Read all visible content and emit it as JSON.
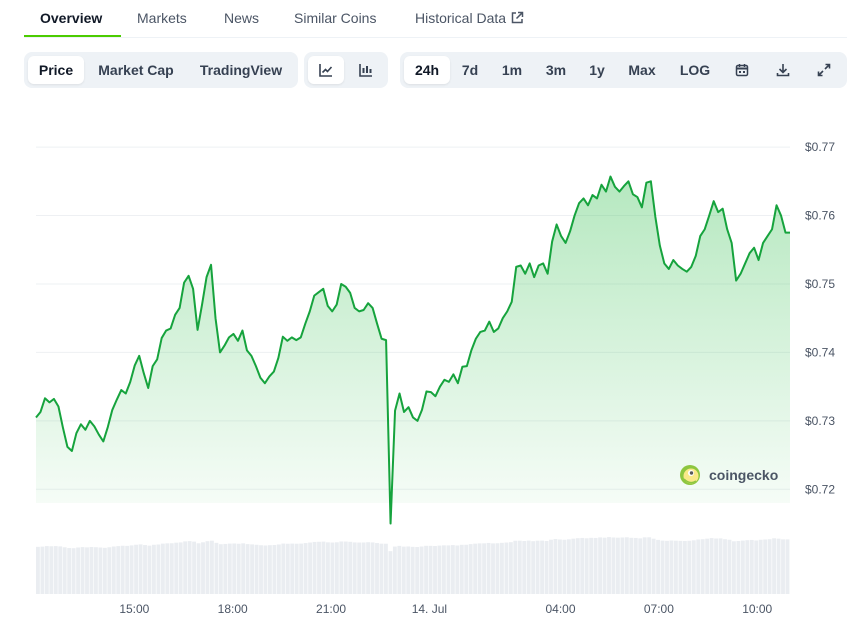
{
  "tabs": [
    {
      "label": "Overview",
      "active": true
    },
    {
      "label": "Markets"
    },
    {
      "label": "News"
    },
    {
      "label": "Similar Coins"
    },
    {
      "label": "Historical Data",
      "external": true
    }
  ],
  "chart_modes": [
    {
      "label": "Price",
      "selected": true
    },
    {
      "label": "Market Cap"
    },
    {
      "label": "TradingView"
    }
  ],
  "chart_styles": [
    {
      "icon": "line-chart-icon",
      "selected": true
    },
    {
      "icon": "candlestick-chart-icon"
    }
  ],
  "ranges": [
    {
      "label": "24h",
      "selected": true
    },
    {
      "label": "7d"
    },
    {
      "label": "1m"
    },
    {
      "label": "3m"
    },
    {
      "label": "1y"
    },
    {
      "label": "Max"
    },
    {
      "label": "LOG"
    }
  ],
  "tools": [
    "calendar-icon",
    "download-icon",
    "fullscreen-icon"
  ],
  "watermark": "coingecko",
  "colors": {
    "line": "#16a33d",
    "area_top": "#c9efd2",
    "volume": "#eaedf1",
    "accent": "#4bcc00"
  },
  "chart_data": {
    "type": "area",
    "ylim": [
      0.718,
      0.7725
    ],
    "yticks": [
      "$0.77",
      "$0.76",
      "$0.75",
      "$0.74",
      "$0.73",
      "$0.72"
    ],
    "ytick_values": [
      0.77,
      0.76,
      0.75,
      0.74,
      0.73,
      0.72
    ],
    "xticks": [
      "15:00",
      "18:00",
      "21:00",
      "14. Jul",
      "04:00",
      "07:00",
      "10:00"
    ],
    "xtick_hours": [
      3,
      6,
      9,
      12,
      16,
      19,
      22
    ],
    "x_start_label": "12:00",
    "x_end_hours": 23.0,
    "grid": true,
    "series": [
      {
        "values": [
          0.7305,
          0.7313,
          0.7333,
          0.7327,
          0.7332,
          0.7321,
          0.729,
          0.7262,
          0.7256,
          0.7282,
          0.7295,
          0.7287,
          0.73,
          0.7292,
          0.728,
          0.727,
          0.7291,
          0.7316,
          0.7331,
          0.7345,
          0.734,
          0.7357,
          0.7381,
          0.7395,
          0.737,
          0.7348,
          0.738,
          0.739,
          0.7421,
          0.7432,
          0.7435,
          0.7455,
          0.7465,
          0.7502,
          0.7512,
          0.7493,
          0.7433,
          0.747,
          0.751,
          0.7528,
          0.745,
          0.74,
          0.741,
          0.7422,
          0.7427,
          0.7417,
          0.7432,
          0.7403,
          0.7395,
          0.738,
          0.7363,
          0.7355,
          0.7365,
          0.7372,
          0.7392,
          0.7423,
          0.7417,
          0.7422,
          0.7418,
          0.7422,
          0.7442,
          0.746,
          0.7483,
          0.7488,
          0.7493,
          0.7468,
          0.746,
          0.747,
          0.75,
          0.7496,
          0.7487,
          0.7465,
          0.746,
          0.7462,
          0.7472,
          0.7465,
          0.7442,
          0.742,
          0.7418,
          0.715,
          0.7315,
          0.734,
          0.7313,
          0.732,
          0.7305,
          0.73,
          0.7316,
          0.7343,
          0.7342,
          0.7336,
          0.735,
          0.736,
          0.7357,
          0.7368,
          0.7355,
          0.7379,
          0.738,
          0.7403,
          0.742,
          0.743,
          0.7432,
          0.7445,
          0.743,
          0.7435,
          0.745,
          0.746,
          0.7474,
          0.7525,
          0.7527,
          0.7515,
          0.753,
          0.751,
          0.7527,
          0.753,
          0.7515,
          0.7562,
          0.7587,
          0.757,
          0.756,
          0.7577,
          0.76,
          0.7618,
          0.7625,
          0.7615,
          0.763,
          0.7625,
          0.7645,
          0.7635,
          0.7657,
          0.7642,
          0.7635,
          0.7643,
          0.765,
          0.7631,
          0.7627,
          0.7612,
          0.7648,
          0.765,
          0.7598,
          0.7556,
          0.753,
          0.7522,
          0.7535,
          0.7527,
          0.7522,
          0.7518,
          0.7525,
          0.7541,
          0.757,
          0.758,
          0.76,
          0.7621,
          0.7605,
          0.761,
          0.758,
          0.756,
          0.7505,
          0.7515,
          0.753,
          0.7545,
          0.7553,
          0.7535,
          0.756,
          0.757,
          0.758,
          0.7615,
          0.76,
          0.7575,
          0.7575
        ]
      }
    ]
  }
}
